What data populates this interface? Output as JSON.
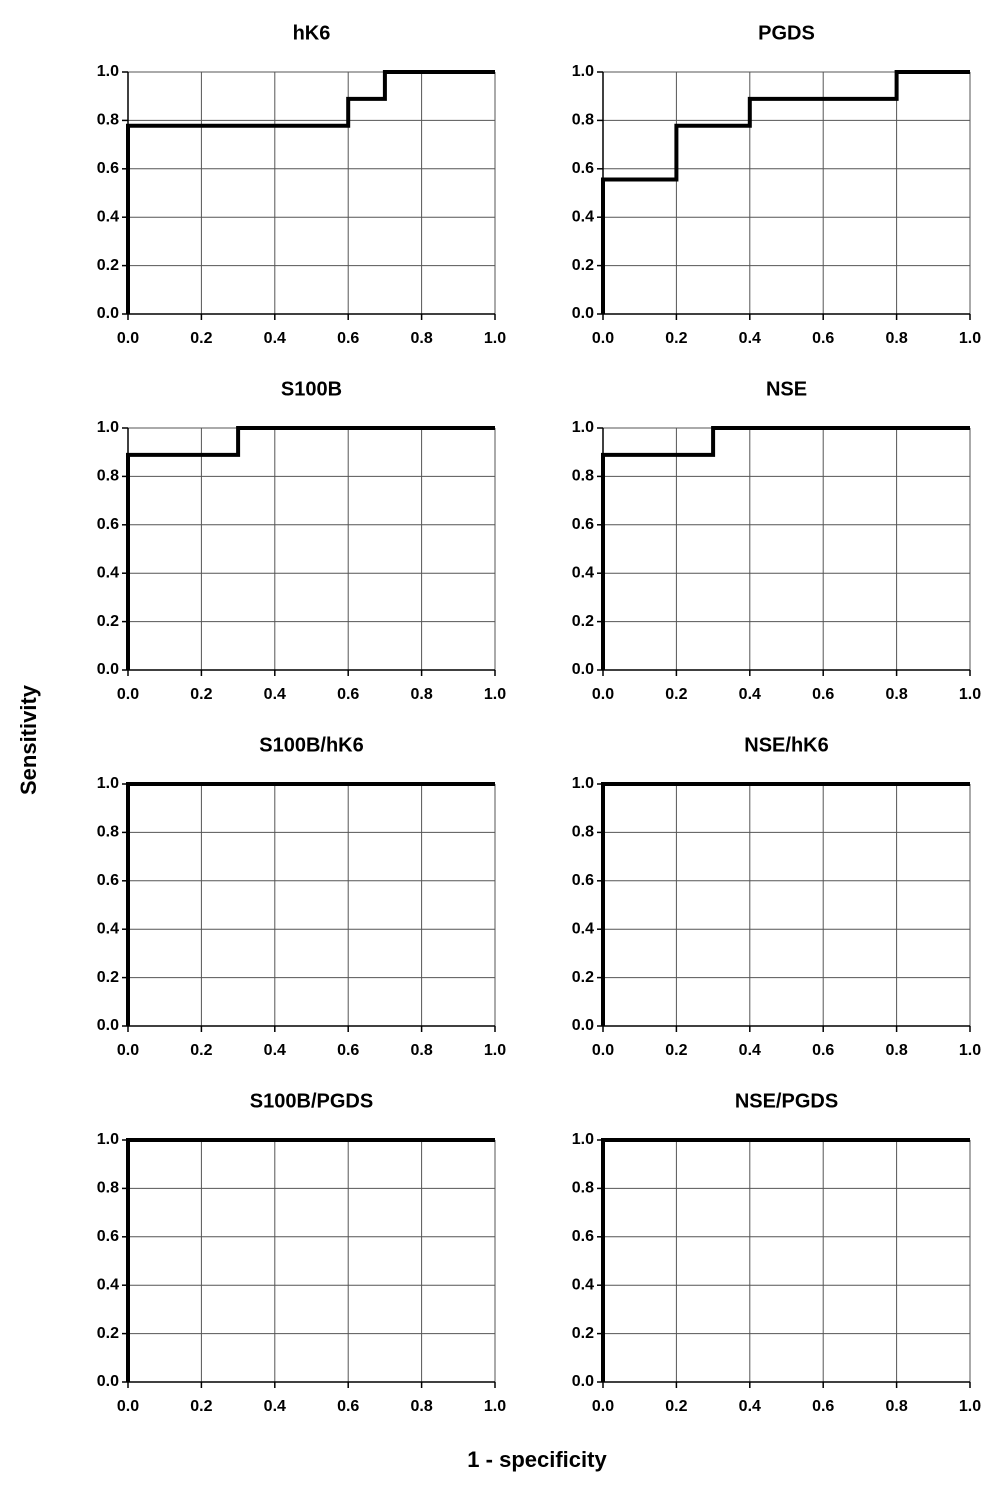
{
  "xlabel": "1 - specificity",
  "ylabel": "Sensitivity",
  "chart_data": [
    {
      "type": "line",
      "title": "hK6",
      "color": "#000000",
      "grid": true,
      "x": [
        0,
        0,
        0.6,
        0.6,
        0.7,
        0.7,
        1
      ],
      "values": [
        0,
        0.778,
        0.778,
        0.889,
        0.889,
        1,
        1
      ],
      "xlim": [
        0,
        1
      ],
      "ylim": [
        0,
        1
      ],
      "xticks": [
        {
          "value": 0,
          "label": "0.0"
        },
        0.2,
        0.4,
        0.6,
        0.8,
        {
          "value": 1,
          "label": "1.0"
        }
      ],
      "yticks": [
        {
          "value": 0,
          "label": "0.0"
        },
        0.2,
        0.4,
        0.6,
        0.8,
        {
          "value": 1,
          "label": "1.0"
        }
      ]
    },
    {
      "type": "line",
      "title": "PGDS",
      "color": "#000000",
      "grid": true,
      "x": [
        0,
        0,
        0.2,
        0.2,
        0.4,
        0.4,
        0.8,
        0.8,
        1
      ],
      "values": [
        0,
        0.556,
        0.556,
        0.778,
        0.778,
        0.889,
        0.889,
        1,
        1
      ],
      "xlim": [
        0,
        1
      ],
      "ylim": [
        0,
        1
      ],
      "xticks": [
        {
          "value": 0,
          "label": "0.0"
        },
        0.2,
        0.4,
        0.6,
        0.8,
        {
          "value": 1,
          "label": "1.0"
        }
      ],
      "yticks": [
        {
          "value": 0,
          "label": "0.0"
        },
        0.2,
        0.4,
        0.6,
        0.8,
        {
          "value": 1,
          "label": "1.0"
        }
      ]
    },
    {
      "type": "line",
      "title": "S100B",
      "color": "#000000",
      "grid": true,
      "x": [
        0,
        0,
        0.3,
        0.3,
        1
      ],
      "values": [
        0,
        0.889,
        0.889,
        1,
        1
      ],
      "xlim": [
        0,
        1
      ],
      "ylim": [
        0,
        1
      ],
      "xticks": [
        {
          "value": 0,
          "label": "0.0"
        },
        0.2,
        0.4,
        0.6,
        0.8,
        {
          "value": 1,
          "label": "1.0"
        }
      ],
      "yticks": [
        {
          "value": 0,
          "label": "0.0"
        },
        0.2,
        0.4,
        0.6,
        0.8,
        {
          "value": 1,
          "label": "1.0"
        }
      ]
    },
    {
      "type": "line",
      "title": "NSE",
      "color": "#000000",
      "grid": true,
      "x": [
        0,
        0,
        0.3,
        0.3,
        1
      ],
      "values": [
        0,
        0.889,
        0.889,
        1,
        1
      ],
      "xlim": [
        0,
        1
      ],
      "ylim": [
        0,
        1
      ],
      "xticks": [
        {
          "value": 0,
          "label": "0.0"
        },
        0.2,
        0.4,
        0.6,
        0.8,
        {
          "value": 1,
          "label": "1.0"
        }
      ],
      "yticks": [
        {
          "value": 0,
          "label": "0.0"
        },
        0.2,
        0.4,
        0.6,
        0.8,
        {
          "value": 1,
          "label": "1.0"
        }
      ]
    },
    {
      "type": "line",
      "title": "S100B/hK6",
      "color": "#000000",
      "grid": true,
      "x": [
        0,
        0,
        1
      ],
      "values": [
        0,
        1,
        1
      ],
      "xlim": [
        0,
        1
      ],
      "ylim": [
        0,
        1
      ],
      "xticks": [
        {
          "value": 0,
          "label": "0.0"
        },
        0.2,
        0.4,
        0.6,
        0.8,
        {
          "value": 1,
          "label": "1.0"
        }
      ],
      "yticks": [
        {
          "value": 0,
          "label": "0.0"
        },
        0.2,
        0.4,
        0.6,
        0.8,
        {
          "value": 1,
          "label": "1.0"
        }
      ]
    },
    {
      "type": "line",
      "title": "NSE/hK6",
      "color": "#000000",
      "grid": true,
      "x": [
        0,
        0,
        1
      ],
      "values": [
        0,
        1,
        1
      ],
      "xlim": [
        0,
        1
      ],
      "ylim": [
        0,
        1
      ],
      "xticks": [
        {
          "value": 0,
          "label": "0.0"
        },
        0.2,
        0.4,
        0.6,
        0.8,
        {
          "value": 1,
          "label": "1.0"
        }
      ],
      "yticks": [
        {
          "value": 0,
          "label": "0.0"
        },
        0.2,
        0.4,
        0.6,
        0.8,
        {
          "value": 1,
          "label": "1.0"
        }
      ]
    },
    {
      "type": "line",
      "title": "S100B/PGDS",
      "color": "#000000",
      "grid": true,
      "x": [
        0,
        0,
        1
      ],
      "values": [
        0,
        1,
        1
      ],
      "xlim": [
        0,
        1
      ],
      "ylim": [
        0,
        1
      ],
      "xticks": [
        {
          "value": 0,
          "label": "0.0"
        },
        0.2,
        0.4,
        0.6,
        0.8,
        {
          "value": 1,
          "label": "1.0"
        }
      ],
      "yticks": [
        {
          "value": 0,
          "label": "0.0"
        },
        0.2,
        0.4,
        0.6,
        0.8,
        {
          "value": 1,
          "label": "1.0"
        }
      ]
    },
    {
      "type": "line",
      "title": "NSE/PGDS",
      "color": "#000000",
      "grid": true,
      "x": [
        0,
        0,
        1
      ],
      "values": [
        0,
        1,
        1
      ],
      "xlim": [
        0,
        1
      ],
      "ylim": [
        0,
        1
      ],
      "xticks": [
        {
          "value": 0,
          "label": "0.0"
        },
        0.2,
        0.4,
        0.6,
        0.8,
        {
          "value": 1,
          "label": "1.0"
        }
      ],
      "yticks": [
        {
          "value": 0,
          "label": "0.0"
        },
        0.2,
        0.4,
        0.6,
        0.8,
        {
          "value": 1,
          "label": "1.0"
        }
      ]
    }
  ]
}
